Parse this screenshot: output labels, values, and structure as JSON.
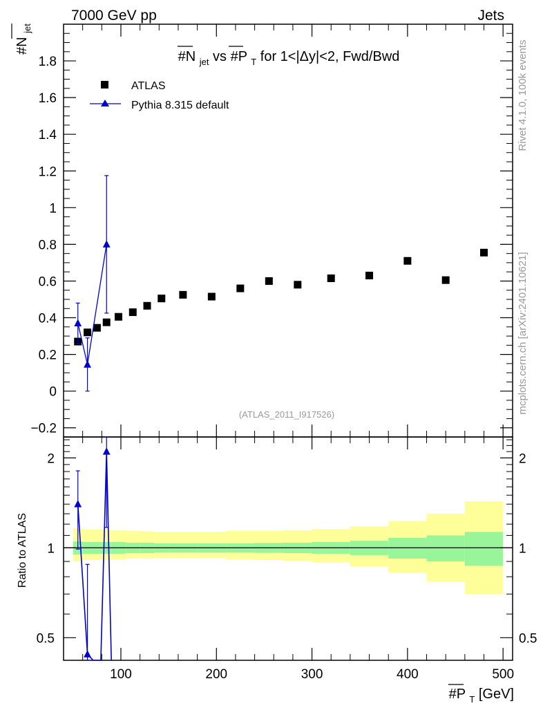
{
  "header": {
    "left": "7000 GeV pp",
    "right": "Jets"
  },
  "side_labels": {
    "rivet": "Rivet 4.1.0,  100k events",
    "mcplots": "mcplots.cern.ch [arXiv:2401.10621]"
  },
  "colors": {
    "atlas": "#000000",
    "pythia": "#0000cc",
    "band_inner": "#99f599",
    "band_outer": "#ffff99",
    "watermark": "#999999"
  },
  "chart_data": [
    {
      "id": "main",
      "type": "scatter",
      "title": {
        "prefix": "#N",
        "sub1": "jet",
        "middle": " vs #P",
        "sub2": "T",
        "suffix": " for 1<|Δy|<2, Fwd/Bwd"
      },
      "ylabel": {
        "main": "#N",
        "sub": "jet"
      },
      "xlim": [
        40,
        510
      ],
      "ylim": [
        -0.25,
        2.0
      ],
      "y_ticks": [
        -0.2,
        0,
        0.2,
        0.4,
        0.6,
        0.8,
        1,
        1.2,
        1.4,
        1.6,
        1.8
      ],
      "y_tick_labels": [
        "−0.2",
        "0",
        "0.2",
        "0.4",
        "0.6",
        "0.8",
        "1",
        "1.2",
        "1.4",
        "1.6",
        "1.8"
      ],
      "watermark": "(ATLAS_2011_I917526)",
      "legend": [
        {
          "key": "atlas",
          "label": "ATLAS",
          "marker": "square"
        },
        {
          "key": "pythia",
          "label": "Pythia 8.315 default",
          "marker": "triangle"
        }
      ],
      "series": [
        {
          "name": "ATLAS",
          "x": [
            55,
            65,
            75,
            85,
            97.5,
            112.5,
            127.5,
            142.5,
            165,
            195,
            225,
            255,
            285,
            320,
            360,
            400,
            440,
            480
          ],
          "y": [
            0.27,
            0.32,
            0.345,
            0.375,
            0.405,
            0.43,
            0.465,
            0.505,
            0.525,
            0.515,
            0.56,
            0.6,
            0.58,
            0.615,
            0.63,
            0.71,
            0.605,
            0.755
          ]
        },
        {
          "name": "Pythia 8.315 default",
          "x": [
            55,
            65,
            85
          ],
          "y": [
            0.37,
            0.145,
            0.8
          ],
          "err_lo": [
            0.11,
            0.145,
            0.375
          ],
          "err_hi": [
            0.11,
            0.145,
            0.375
          ]
        }
      ]
    },
    {
      "id": "ratio",
      "type": "line",
      "ylabel": "Ratio to ATLAS",
      "xlabel": {
        "prefix": "#P",
        "sub": "T",
        "suffix": " [GeV]"
      },
      "yscale": "log",
      "xlim": [
        40,
        510
      ],
      "ylim": [
        0.42,
        2.35
      ],
      "reference": 1,
      "y_ticks": [
        0.5,
        1,
        2
      ],
      "y_tick_labels": [
        "0.5",
        "1",
        "2"
      ],
      "x_ticks": [
        100,
        200,
        300,
        400,
        500
      ],
      "x_tick_labels": [
        "100",
        "200",
        "300",
        "400",
        "500"
      ],
      "bands": {
        "edges": [
          50,
          60,
          70,
          80,
          90,
          105,
          120,
          135,
          150,
          180,
          210,
          240,
          270,
          300,
          340,
          380,
          420,
          460,
          500
        ],
        "inner_lo": [
          0.95,
          0.955,
          0.955,
          0.955,
          0.955,
          0.96,
          0.96,
          0.965,
          0.965,
          0.965,
          0.965,
          0.962,
          0.96,
          0.955,
          0.945,
          0.92,
          0.9,
          0.87
        ],
        "inner_hi": [
          1.05,
          1.045,
          1.045,
          1.045,
          1.045,
          1.04,
          1.04,
          1.035,
          1.035,
          1.035,
          1.035,
          1.038,
          1.04,
          1.045,
          1.055,
          1.08,
          1.1,
          1.13
        ],
        "outer_lo": [
          0.9,
          0.91,
          0.91,
          0.91,
          0.915,
          0.92,
          0.92,
          0.925,
          0.925,
          0.925,
          0.915,
          0.91,
          0.905,
          0.895,
          0.865,
          0.825,
          0.77,
          0.7
        ],
        "outer_hi": [
          1.16,
          1.15,
          1.15,
          1.15,
          1.145,
          1.14,
          1.135,
          1.13,
          1.13,
          1.13,
          1.14,
          1.14,
          1.145,
          1.155,
          1.18,
          1.23,
          1.3,
          1.43
        ]
      },
      "series": [
        {
          "name": "Pythia 8.315 default",
          "x": [
            55,
            65,
            71,
            79,
            85,
            90
          ],
          "y": [
            1.4,
            0.44,
            0.38,
            0.38,
            2.1,
            0.38
          ],
          "markers": [
            true,
            true,
            false,
            false,
            true,
            false
          ],
          "err_lo": [
            0.41,
            0.44,
            0,
            0,
            0.93,
            0
          ],
          "err_hi": [
            0.41,
            0.44,
            0,
            0,
            0.93,
            0
          ]
        }
      ]
    }
  ]
}
